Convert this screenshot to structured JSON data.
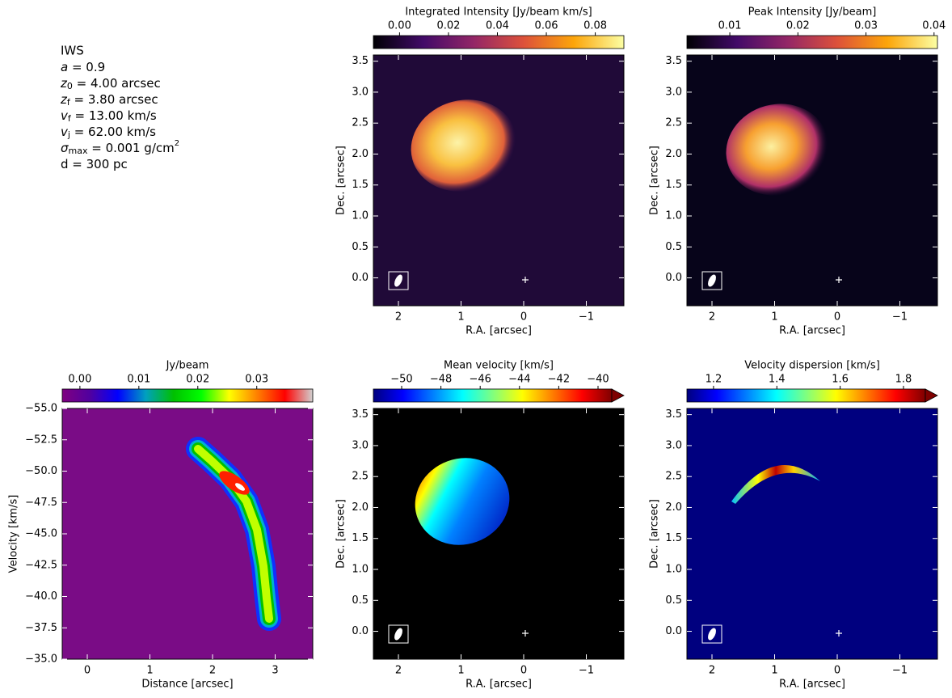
{
  "info": {
    "title": "IWS",
    "lines": [
      {
        "symbol": "a",
        "text": " = 0.9"
      },
      {
        "symbol": "z",
        "subscript": "0",
        "text": " = 4.00 arcsec"
      },
      {
        "symbol": "z",
        "subscript": "f",
        "text": " = 3.80 arcsec"
      },
      {
        "symbol": "v",
        "subscript": "f",
        "text": " = 13.00 km/s"
      },
      {
        "symbol": "v",
        "subscript": "j",
        "text": " = 62.00 km/s"
      },
      {
        "symbol": "σ",
        "subscript": "max",
        "text": " = 0.001 g/cm",
        "superscript": "2"
      },
      {
        "text": "d = 300 pc"
      }
    ]
  },
  "chart_data": [
    {
      "type": "image",
      "xlabel": "R.A. [arcsec]",
      "ylabel": "Dec. [arcsec]",
      "xlim": [
        2.4,
        -1.6
      ],
      "ylim": [
        -0.45,
        3.6
      ],
      "xticks": [
        2,
        1,
        0,
        {
          "value": -1,
          "label": "−1"
        }
      ],
      "yticks": [
        {
          "value": 0,
          "label": "0.0"
        },
        0.5,
        {
          "value": 1,
          "label": "1.0"
        },
        1.5,
        {
          "value": 2,
          "label": "2.0"
        },
        2.5,
        {
          "value": 3,
          "label": "3.0"
        },
        3.5
      ],
      "colorbar": {
        "label": "Integrated Intensity [Jy/beam km/s]",
        "lim": [
          -0.0107,
          0.0917
        ],
        "ticks": [
          {
            "value": 0,
            "label": "0.00"
          },
          0.02,
          0.04,
          0.06,
          0.08
        ],
        "colormap": [
          "#000004",
          "#420a68",
          "#932667",
          "#dd513a",
          "#fca50a",
          "#fcffa4"
        ]
      }
    },
    {
      "type": "image",
      "xlabel": "R.A. [arcsec]",
      "ylabel": "Dec. [arcsec]",
      "xlim": [
        2.4,
        -1.6
      ],
      "ylim": [
        -0.45,
        3.6
      ],
      "xticks": [
        2,
        1,
        0,
        {
          "value": -1,
          "label": "−1"
        }
      ],
      "yticks": [
        {
          "value": 0,
          "label": "0.0"
        },
        0.5,
        {
          "value": 1,
          "label": "1.0"
        },
        1.5,
        {
          "value": 2,
          "label": "2.0"
        },
        2.5,
        {
          "value": 3,
          "label": "3.0"
        },
        3.5
      ],
      "colorbar": {
        "label": "Peak Intensity [Jy/beam]",
        "lim": [
          0.0037,
          0.0405
        ],
        "ticks": [
          0.01,
          0.02,
          0.03,
          0.04
        ],
        "colormap": [
          "#000004",
          "#420a68",
          "#932667",
          "#dd513a",
          "#fca50a",
          "#fcffa4"
        ]
      }
    },
    {
      "type": "image",
      "xlabel": "Distance [arcsec]",
      "ylabel": "Velocity [km/s]",
      "xlim": [
        -0.4,
        3.6
      ],
      "ylim": [
        -35,
        -55
      ],
      "xticks": [
        0,
        1,
        2,
        3
      ],
      "yticks": [
        {
          "value": -55,
          "label": "−55.0"
        },
        {
          "value": -52.5,
          "label": "−52.5"
        },
        {
          "value": -50,
          "label": "−50.0"
        },
        {
          "value": -47.5,
          "label": "−47.5"
        },
        {
          "value": -45,
          "label": "−45.0"
        },
        {
          "value": -42.5,
          "label": "−42.5"
        },
        {
          "value": -40,
          "label": "−40.0"
        },
        {
          "value": -37.5,
          "label": "−37.5"
        },
        {
          "value": -35,
          "label": "−35.0"
        }
      ],
      "colorbar": {
        "label": "Jy/beam",
        "lim": [
          -0.003,
          0.0395
        ],
        "ticks": [
          {
            "value": 0,
            "label": "0.00"
          },
          0.01,
          0.02,
          0.03
        ],
        "colormap": [
          "#800080",
          "#5000a0",
          "#0000ff",
          "#00a0c0",
          "#00c000",
          "#00ff00",
          "#ffff00",
          "#ff8000",
          "#ff0000",
          "#d0d0d0"
        ]
      }
    },
    {
      "type": "image",
      "xlabel": "R.A. [arcsec]",
      "ylabel": "Dec. [arcsec]",
      "xlim": [
        2.4,
        -1.6
      ],
      "ylim": [
        -0.45,
        3.6
      ],
      "xticks": [
        2,
        1,
        0,
        {
          "value": -1,
          "label": "−1"
        }
      ],
      "yticks": [
        {
          "value": 0,
          "label": "0.0"
        },
        0.5,
        {
          "value": 1,
          "label": "1.0"
        },
        1.5,
        {
          "value": 2,
          "label": "2.0"
        },
        2.5,
        {
          "value": 3,
          "label": "3.0"
        },
        3.5
      ],
      "colorbar": {
        "label": "Mean velocity [km/s]",
        "lim": [
          -51.44,
          -39.3
        ],
        "extend": "max",
        "ticks": [
          {
            "value": -50,
            "label": "−50"
          },
          {
            "value": -48,
            "label": "−48"
          },
          {
            "value": -46,
            "label": "−46"
          },
          {
            "value": -44,
            "label": "−44"
          },
          {
            "value": -42,
            "label": "−42"
          },
          {
            "value": -40,
            "label": "−40"
          }
        ],
        "colormap": [
          "#00007f",
          "#0000ff",
          "#007fff",
          "#00ffff",
          "#7fff7f",
          "#ffff00",
          "#ff7f00",
          "#ff0000",
          "#7f0000"
        ]
      }
    },
    {
      "type": "image",
      "xlabel": "R.A. [arcsec]",
      "ylabel": "Dec. [arcsec]",
      "xlim": [
        2.4,
        -1.6
      ],
      "ylim": [
        -0.45,
        3.6
      ],
      "xticks": [
        2,
        1,
        0,
        {
          "value": -1,
          "label": "−1"
        }
      ],
      "yticks": [
        {
          "value": 0,
          "label": "0.0"
        },
        0.5,
        {
          "value": 1,
          "label": "1.0"
        },
        1.5,
        {
          "value": 2,
          "label": "2.0"
        },
        2.5,
        {
          "value": 3,
          "label": "3.0"
        },
        3.5
      ],
      "colorbar": {
        "label": "Velocity dispersion [km/s]",
        "lim": [
          1.116,
          1.869
        ],
        "extend": "max",
        "ticks": [
          1.2,
          1.4,
          1.6,
          1.8
        ],
        "colormap": [
          "#00007f",
          "#0000ff",
          "#007fff",
          "#00ffff",
          "#7fff7f",
          "#ffff00",
          "#ff7f00",
          "#ff0000",
          "#7f0000"
        ]
      }
    }
  ]
}
